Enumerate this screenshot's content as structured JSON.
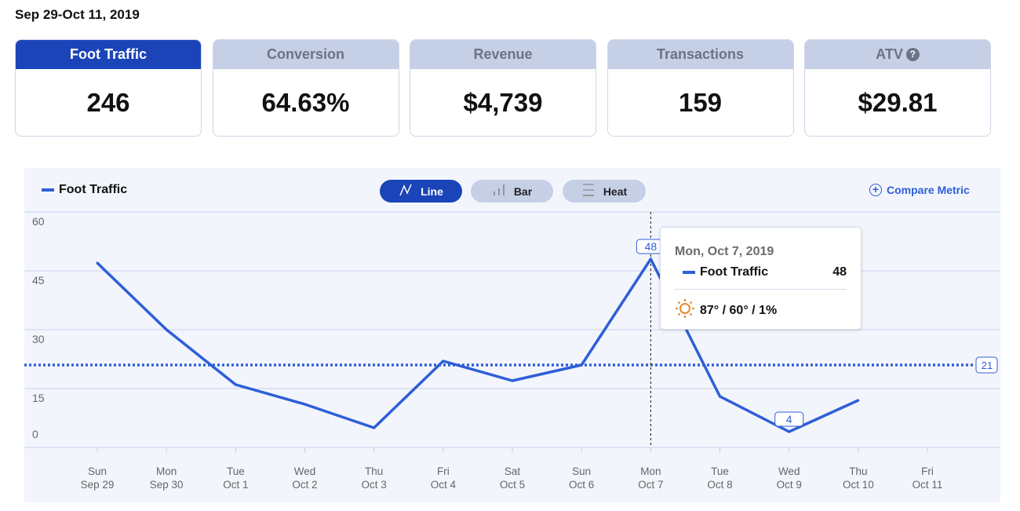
{
  "date_range": "Sep 29-Oct 11, 2019",
  "metrics": [
    {
      "label": "Foot Traffic",
      "value": "246",
      "active": true
    },
    {
      "label": "Conversion",
      "value": "64.63%"
    },
    {
      "label": "Revenue",
      "value": "$4,739"
    },
    {
      "label": "Transactions",
      "value": "159"
    },
    {
      "label": "ATV",
      "value": "$29.81",
      "help_icon": "question-circle-icon"
    }
  ],
  "toolbar": {
    "views": [
      {
        "label": "Line",
        "icon": "line-chart-icon",
        "active": true
      },
      {
        "label": "Bar",
        "icon": "bar-chart-icon"
      },
      {
        "label": "Heat",
        "icon": "heat-icon"
      }
    ],
    "compare_label": "Compare Metric",
    "help_mark": "?"
  },
  "tooltip": {
    "date": "Mon, Oct 7, 2019",
    "series": "Foot Traffic",
    "value": "48",
    "weather_icon": "sun-icon",
    "weather": "87° / 60° / 1%"
  },
  "colors": {
    "accent": "#1a44b8",
    "line": "#2e5fd6",
    "inactive": "#c5cfe6",
    "sun": "#e08a2e"
  },
  "chart_data": {
    "type": "line",
    "series": [
      {
        "name": "Foot Traffic",
        "values": [
          47,
          30,
          16,
          11,
          5,
          22,
          17,
          21,
          48,
          13,
          4,
          12,
          null
        ]
      }
    ],
    "categories": [
      [
        "Sun",
        "Sep 29"
      ],
      [
        "Mon",
        "Sep 30"
      ],
      [
        "Tue",
        "Oct 1"
      ],
      [
        "Wed",
        "Oct 2"
      ],
      [
        "Thu",
        "Oct 3"
      ],
      [
        "Fri",
        "Oct 4"
      ],
      [
        "Sat",
        "Oct 5"
      ],
      [
        "Sun",
        "Oct 6"
      ],
      [
        "Mon",
        "Oct 7"
      ],
      [
        "Tue",
        "Oct 8"
      ],
      [
        "Wed",
        "Oct 9"
      ],
      [
        "Thu",
        "Oct 10"
      ],
      [
        "Fri",
        "Oct 11"
      ]
    ],
    "yticks": [
      0,
      15,
      30,
      45,
      60
    ],
    "ylim": [
      0,
      60
    ],
    "average": 21,
    "average_label": "21",
    "point_labels": [
      {
        "index": 8,
        "label": "48"
      },
      {
        "index": 10,
        "label": "4"
      }
    ],
    "highlight_index": 8,
    "grid": true,
    "legend": "top-left"
  }
}
